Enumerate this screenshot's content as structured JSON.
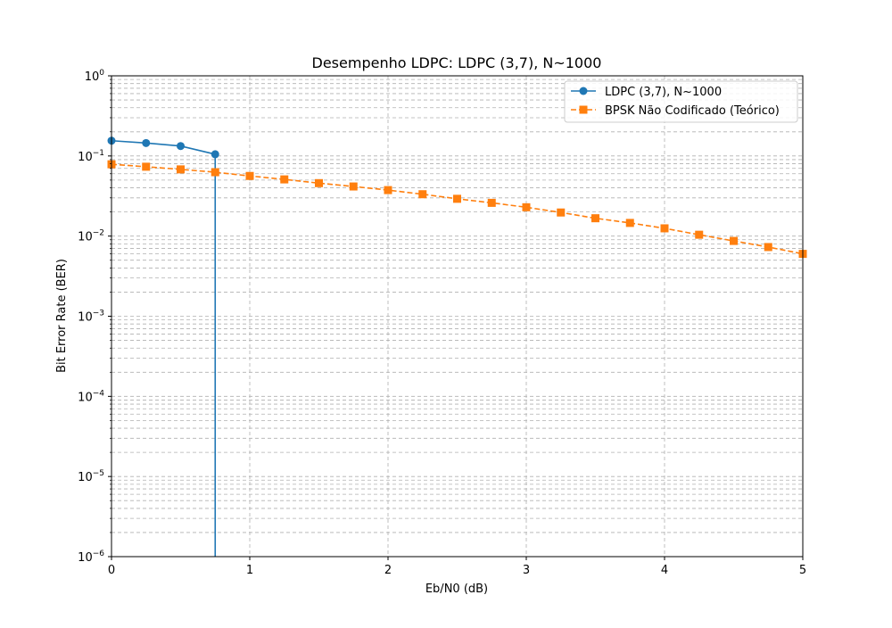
{
  "chart_data": {
    "type": "line",
    "title": "Desempenho LDPC: LDPC (3,7), N~1000",
    "xlabel": "Eb/N0 (dB)",
    "ylabel": "Bit Error Rate (BER)",
    "x_scale": "linear",
    "y_scale": "log",
    "xlim": [
      0,
      5
    ],
    "ylim": [
      1e-06,
      1
    ],
    "x_ticks": [
      "0",
      "1",
      "2",
      "3",
      "4",
      "5"
    ],
    "y_ticks": [
      {
        "base": "10",
        "exp": "0"
      },
      {
        "base": "10",
        "exp": "−1"
      },
      {
        "base": "10",
        "exp": "−2"
      },
      {
        "base": "10",
        "exp": "−3"
      },
      {
        "base": "10",
        "exp": "−4"
      },
      {
        "base": "10",
        "exp": "−5"
      },
      {
        "base": "10",
        "exp": "−6"
      }
    ],
    "grid": true,
    "legend_position": "top-right",
    "series": [
      {
        "name": "LDPC (3,7), N~1000",
        "color": "#1f77b4",
        "line_style": "solid",
        "marker": "circle",
        "x": [
          0,
          0.25,
          0.5,
          0.75
        ],
        "y": [
          0.155,
          0.145,
          0.133,
          0.105
        ],
        "drop_to_floor_after_last": true
      },
      {
        "name": "BPSK Não Codificado (Teórico)",
        "color": "#ff7f0e",
        "line_style": "dashed",
        "marker": "square",
        "x": [
          0,
          0.25,
          0.5,
          0.75,
          1,
          1.25,
          1.5,
          1.75,
          2,
          2.25,
          2.5,
          2.75,
          3,
          3.25,
          3.5,
          3.75,
          4,
          4.25,
          4.5,
          4.75,
          5
        ],
        "y": [
          0.0787,
          0.0734,
          0.068,
          0.0627,
          0.0563,
          0.051,
          0.0458,
          0.0416,
          0.0375,
          0.0333,
          0.0292,
          0.026,
          0.0229,
          0.0197,
          0.0167,
          0.0146,
          0.0125,
          0.0104,
          0.0087,
          0.0073,
          0.006
        ]
      }
    ]
  }
}
